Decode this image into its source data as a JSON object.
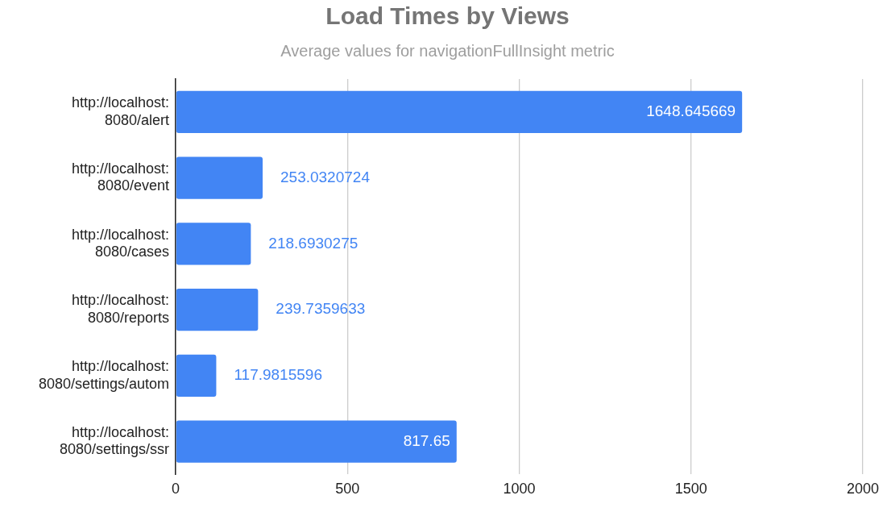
{
  "chart_data": {
    "type": "bar",
    "orientation": "horizontal",
    "title": "Load Times by Views",
    "subtitle": "Average values for navigationFullInsight metric",
    "categories": [
      "http://localhost:8080/alert",
      "http://localhost:8080/event",
      "http://localhost:8080/cases",
      "http://localhost:8080/reports",
      "http://localhost:8080/settings/autom",
      "http://localhost:8080/settings/ssr"
    ],
    "values": [
      1648.645669,
      253.0320724,
      218.6930275,
      239.7359633,
      117.9815596,
      817.65
    ],
    "color": "#4285f4",
    "xlim": [
      0,
      2000
    ],
    "xticks": [
      0,
      500,
      1000,
      1500,
      2000
    ],
    "grid": "x",
    "legend": false,
    "data_labels": true
  }
}
